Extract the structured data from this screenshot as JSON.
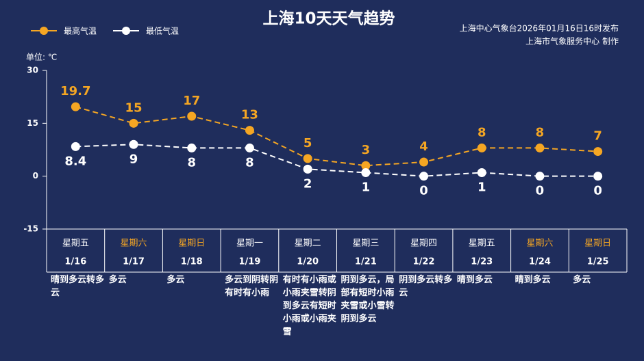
{
  "chart_data": {
    "type": "line",
    "title": "上海10天天气趋势",
    "source": [
      "上海中心气象台2026年01月16日16时发布",
      "上海市气象服务中心 制作"
    ],
    "y_label": "单位: ℃",
    "categories": [
      "1/16",
      "1/17",
      "1/18",
      "1/19",
      "1/20",
      "1/21",
      "1/22",
      "1/23",
      "1/24",
      "1/25"
    ],
    "weekdays": [
      "星期五",
      "星期六",
      "星期日",
      "星期一",
      "星期二",
      "星期三",
      "星期四",
      "星期五",
      "星期六",
      "星期日"
    ],
    "weekday_colors": [
      "#ffffff",
      "#f5a623",
      "#f5a623",
      "#ffffff",
      "#ffffff",
      "#ffffff",
      "#ffffff",
      "#ffffff",
      "#f5a623",
      "#f5a623"
    ],
    "weather": [
      "晴到多云转多云",
      "多云",
      "多云",
      "多云到阴转阴有时有小雨",
      "有时有小雨或小雨夹雪转阴到多云有短时小雨或小雨夹雪",
      "阴到多云，局部有短时小雨夹雪或小雪转阴到多云",
      "阴到多云转多云",
      "晴到多云",
      "晴到多云",
      "多云"
    ],
    "series": [
      {
        "name": "最高气温",
        "color": "#f5a623",
        "values": [
          19.7,
          15,
          17,
          13,
          5,
          3,
          4,
          8,
          8,
          7
        ]
      },
      {
        "name": "最低气温",
        "color": "#ffffff",
        "values": [
          8.4,
          9,
          8,
          8,
          2,
          1,
          0,
          1,
          0,
          0
        ]
      }
    ],
    "ylim": [
      -15,
      30
    ],
    "yticks": [
      30,
      15,
      0,
      -15
    ]
  }
}
